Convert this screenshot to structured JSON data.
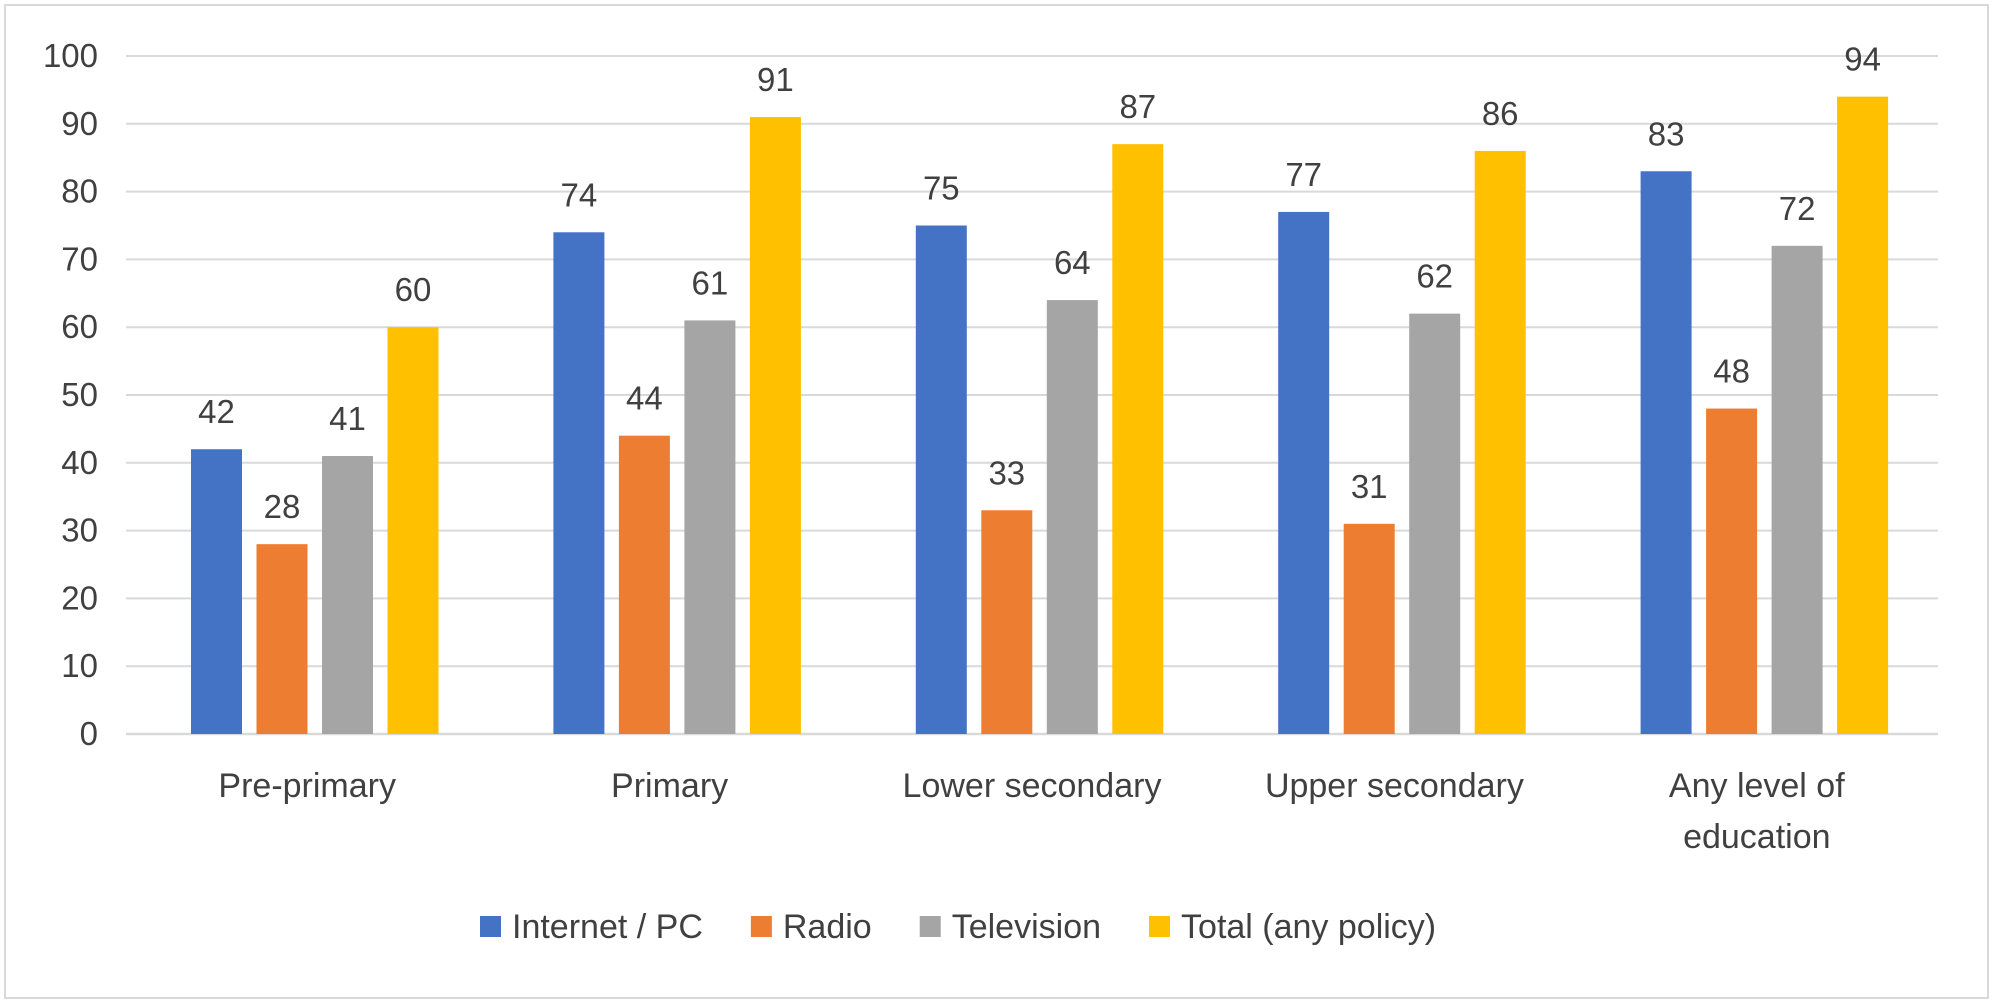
{
  "chart_data": {
    "type": "bar",
    "categories": [
      [
        "Pre-primary"
      ],
      [
        "Primary"
      ],
      [
        "Lower secondary"
      ],
      [
        "Upper secondary"
      ],
      [
        "Any level of",
        "education"
      ]
    ],
    "series": [
      {
        "name": "Internet / PC",
        "color": "#4472C4",
        "values": [
          42,
          74,
          75,
          77,
          83
        ]
      },
      {
        "name": "Radio",
        "color": "#ED7D31",
        "values": [
          28,
          44,
          33,
          31,
          48
        ]
      },
      {
        "name": "Television",
        "color": "#A5A5A5",
        "values": [
          41,
          61,
          64,
          62,
          72
        ]
      },
      {
        "name": "Total (any policy)",
        "color": "#FFC000",
        "values": [
          60,
          91,
          87,
          86,
          94
        ]
      }
    ],
    "ylim": [
      0,
      100
    ],
    "yticks": [
      0,
      10,
      20,
      30,
      40,
      50,
      60,
      70,
      80,
      90,
      100
    ],
    "grid": true,
    "legend": "bottom",
    "title": "",
    "xlabel": "",
    "ylabel": ""
  }
}
